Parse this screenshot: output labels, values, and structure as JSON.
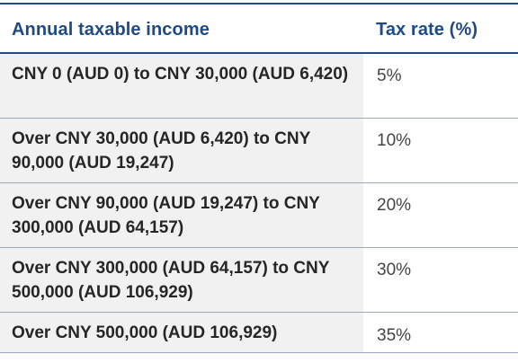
{
  "table": {
    "headers": {
      "income": "Annual taxable income",
      "rate": "Tax rate (%)"
    },
    "rows": [
      {
        "income": "CNY 0 (AUD 0) to CNY 30,000 (AUD 6,420)",
        "rate": "5%"
      },
      {
        "income": "Over CNY 30,000 (AUD 6,420) to CNY 90,000 (AUD 19,247)",
        "rate": "10%"
      },
      {
        "income": "Over CNY 90,000 (AUD 19,247) to CNY 300,000 (AUD 64,157)",
        "rate": "20%"
      },
      {
        "income": "Over CNY 300,000 (AUD 64,157) to CNY 500,000 (AUD 106,929)",
        "rate": "30%"
      },
      {
        "income": "Over CNY 500,000 (AUD 106,929)",
        "rate": "35%"
      }
    ]
  },
  "colors": {
    "header_text": "#1f4a86",
    "rule": "#1f4a86",
    "income_cell_bg": "#f1f1f1",
    "body_text": "#262626"
  }
}
